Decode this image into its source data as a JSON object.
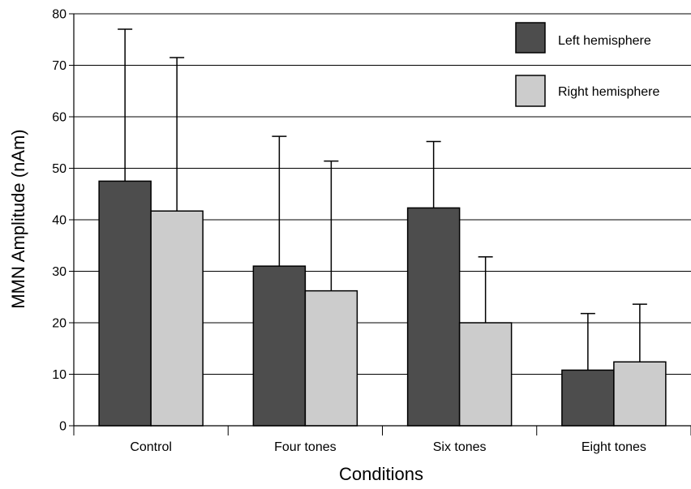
{
  "chart_data": {
    "type": "bar",
    "title": "",
    "xlabel": "Conditions",
    "ylabel": "MMN Amplitude (nAm)",
    "ylim": [
      0,
      80
    ],
    "yticks": [
      0,
      10,
      20,
      30,
      40,
      50,
      60,
      70,
      80
    ],
    "categories": [
      "Control",
      "Four tones",
      "Six tones",
      "Eight tones"
    ],
    "series": [
      {
        "name": "Left hemisphere",
        "color": "#4d4d4d",
        "values": [
          47.5,
          31,
          42.3,
          10.8
        ],
        "error_upper": [
          77,
          56.2,
          55.2,
          21.8
        ]
      },
      {
        "name": "Right hemisphere",
        "color": "#cccccc",
        "values": [
          41.7,
          26.2,
          20,
          12.4
        ],
        "error_upper": [
          71.5,
          51.4,
          32.8,
          23.6
        ]
      }
    ],
    "grid": true,
    "legend_position": "top-right"
  }
}
